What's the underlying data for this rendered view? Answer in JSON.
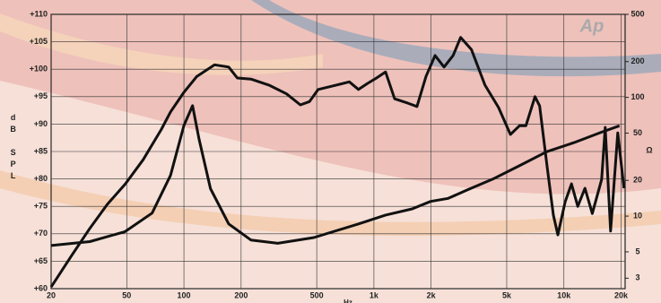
{
  "chart_data": {
    "type": "line",
    "logo": "Ap",
    "y_label": "dB SPL",
    "y2_label": "Ω",
    "x_label": "Hz",
    "xlim": [
      20,
      21000
    ],
    "xscale": "log",
    "xticks": [
      20,
      50,
      100,
      200,
      500,
      {
        "value": 1000,
        "label": "1k"
      },
      {
        "value": 2000,
        "label": "2k"
      },
      {
        "value": 5000,
        "label": "5k"
      },
      {
        "value": 10000,
        "label": "10k"
      },
      {
        "value": 20000,
        "label": "20k"
      }
    ],
    "ylim": [
      60,
      110
    ],
    "yticks": [
      {
        "value": 60,
        "label": "+60"
      },
      {
        "value": 65,
        "label": "+65"
      },
      {
        "value": 70,
        "label": "+70"
      },
      {
        "value": 75,
        "label": "+75"
      },
      {
        "value": 80,
        "label": "+80"
      },
      {
        "value": 85,
        "label": "+85"
      },
      {
        "value": 90,
        "label": "+90"
      },
      {
        "value": 95,
        "label": "+95"
      },
      {
        "value": 100,
        "label": "+100"
      },
      {
        "value": 105,
        "label": "+105"
      },
      {
        "value": 110,
        "label": "+110"
      }
    ],
    "y2lim": [
      2.45,
      500
    ],
    "y2scale": "log",
    "y2ticks": [
      3,
      5,
      10,
      20,
      50,
      100,
      200,
      500
    ],
    "grid": true,
    "series": [
      {
        "color": "#111111",
        "x": [
          20,
          25.6,
          32,
          39.6,
          49.2,
          61,
          76,
          85,
          100,
          117,
          145,
          172,
          191,
          225,
          280,
          347,
          410,
          458,
          509,
          599,
          742,
          829,
          925,
          1032,
          1152,
          1286,
          1510,
          1685,
          1880,
          2098,
          2340,
          2612,
          2860,
          3260,
          3840,
          4530,
          5230,
          5840,
          6310,
          7040,
          7450,
          8150,
          8800,
          9290,
          10150,
          10960,
          11830,
          12900,
          14100,
          15790,
          16500,
          17600,
          19200,
          20700
        ],
        "values": [
          60.3,
          66,
          71,
          75.4,
          79.1,
          83.5,
          89,
          92.2,
          95.8,
          98.7,
          100.8,
          100.4,
          98.4,
          98.2,
          97.1,
          95.5,
          93.5,
          94.1,
          96.3,
          96.9,
          97.7,
          96.3,
          97.4,
          98.4,
          99.5,
          94.6,
          93.8,
          93.2,
          98.7,
          102.5,
          100.4,
          102.5,
          105.8,
          103.6,
          97.1,
          93,
          88.1,
          89.7,
          89.7,
          95,
          93.3,
          82.4,
          73.4,
          69.8,
          75.8,
          79.1,
          75,
          78.3,
          73.7,
          79.9,
          89.4,
          70.5,
          88.4,
          78.3
        ]
      },
      {
        "color": "#111111",
        "axis": "y2",
        "x": [
          20,
          32,
          49,
          68,
          85,
          100,
          111,
          120,
          138,
          172,
          225,
          312,
          483,
          829,
          1152,
          1590,
          1987,
          2460,
          3070,
          4220,
          5860,
          8130,
          11300,
          15700,
          19600
        ],
        "values": [
          5.65,
          6.1,
          7.4,
          10.6,
          22,
          58,
          85,
          45,
          17,
          8.6,
          6.3,
          5.9,
          6.6,
          8.6,
          10.2,
          11.5,
          13.3,
          14.1,
          16.5,
          20.5,
          26.7,
          34.9,
          41.6,
          50.8,
          57.6
        ]
      }
    ]
  }
}
